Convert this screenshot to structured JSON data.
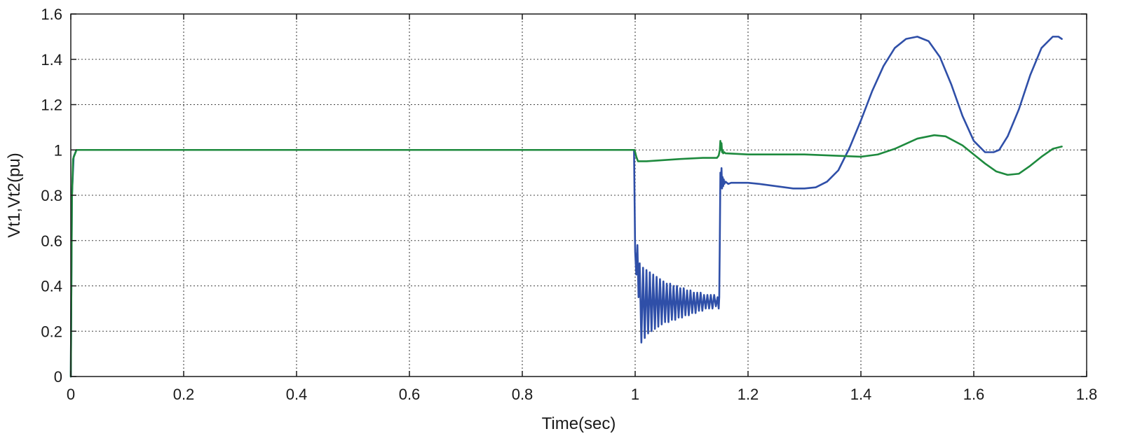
{
  "chart_data": {
    "type": "line",
    "title": "",
    "xlabel": "Time(sec)",
    "ylabel": "Vt1,Vt2(pu)",
    "xlim": [
      0,
      1.8
    ],
    "ylim": [
      0,
      1.6
    ],
    "xticks": [
      0,
      0.2,
      0.4,
      0.6,
      0.8,
      1,
      1.2,
      1.4,
      1.6,
      1.8
    ],
    "yticks": [
      0,
      0.2,
      0.4,
      0.6,
      0.8,
      1,
      1.2,
      1.4,
      1.6
    ],
    "xtick_labels": [
      "0",
      "0.2",
      "0.4",
      "0.6",
      "0.8",
      "1",
      "1.2",
      "1.4",
      "1.6",
      "1.8"
    ],
    "ytick_labels": [
      "0",
      "0.2",
      "0.4",
      "0.6",
      "0.8",
      "1",
      "1.2",
      "1.4",
      "1.6"
    ],
    "grid": true,
    "legend": "none",
    "series": [
      {
        "color": "#2f4fa8",
        "x": [
          0,
          0.002,
          0.005,
          0.01,
          0.2,
          0.4,
          0.6,
          0.8,
          0.998,
          1.0,
          1.002,
          1.004,
          1.006,
          1.008,
          1.011,
          1.014,
          1.017,
          1.02,
          1.023,
          1.026,
          1.029,
          1.032,
          1.035,
          1.038,
          1.041,
          1.044,
          1.047,
          1.05,
          1.053,
          1.056,
          1.059,
          1.062,
          1.065,
          1.068,
          1.071,
          1.074,
          1.077,
          1.08,
          1.083,
          1.086,
          1.089,
          1.092,
          1.095,
          1.098,
          1.101,
          1.104,
          1.107,
          1.11,
          1.113,
          1.116,
          1.119,
          1.122,
          1.125,
          1.128,
          1.131,
          1.134,
          1.137,
          1.14,
          1.143,
          1.146,
          1.148,
          1.149,
          1.15,
          1.151,
          1.152,
          1.153,
          1.154,
          1.155,
          1.156,
          1.157,
          1.158,
          1.16,
          1.165,
          1.17,
          1.2,
          1.22,
          1.25,
          1.28,
          1.3,
          1.32,
          1.34,
          1.36,
          1.38,
          1.4,
          1.42,
          1.44,
          1.46,
          1.48,
          1.5,
          1.51,
          1.52,
          1.54,
          1.56,
          1.58,
          1.6,
          1.62,
          1.635,
          1.645,
          1.66,
          1.68,
          1.7,
          1.72,
          1.74,
          1.75,
          1.756
        ],
        "y": [
          0,
          0.8,
          0.97,
          1.0,
          1.0,
          1.0,
          1.0,
          1.0,
          1.0,
          0.55,
          0.45,
          0.58,
          0.35,
          0.5,
          0.15,
          0.48,
          0.17,
          0.47,
          0.19,
          0.46,
          0.2,
          0.45,
          0.21,
          0.44,
          0.22,
          0.43,
          0.23,
          0.42,
          0.24,
          0.41,
          0.24,
          0.41,
          0.25,
          0.4,
          0.25,
          0.4,
          0.26,
          0.39,
          0.26,
          0.39,
          0.27,
          0.38,
          0.27,
          0.38,
          0.28,
          0.37,
          0.28,
          0.37,
          0.29,
          0.37,
          0.29,
          0.36,
          0.3,
          0.36,
          0.3,
          0.36,
          0.3,
          0.36,
          0.31,
          0.35,
          0.3,
          0.35,
          0.6,
          0.9,
          0.84,
          0.92,
          0.83,
          0.88,
          0.84,
          0.87,
          0.85,
          0.86,
          0.85,
          0.855,
          0.855,
          0.85,
          0.84,
          0.83,
          0.83,
          0.835,
          0.86,
          0.91,
          1.01,
          1.13,
          1.26,
          1.37,
          1.45,
          1.49,
          1.5,
          1.49,
          1.48,
          1.41,
          1.29,
          1.15,
          1.04,
          0.99,
          0.99,
          1.0,
          1.06,
          1.18,
          1.33,
          1.45,
          1.5,
          1.5,
          1.49
        ]
      },
      {
        "color": "#1e8a3e",
        "x": [
          0,
          0.002,
          0.004,
          0.01,
          0.2,
          0.4,
          0.6,
          0.8,
          0.999,
          1.002,
          1.005,
          1.02,
          1.05,
          1.08,
          1.12,
          1.145,
          1.148,
          1.15,
          1.151,
          1.152,
          1.153,
          1.154,
          1.155,
          1.156,
          1.158,
          1.16,
          1.2,
          1.25,
          1.3,
          1.35,
          1.4,
          1.43,
          1.46,
          1.5,
          1.53,
          1.55,
          1.58,
          1.6,
          1.62,
          1.64,
          1.66,
          1.68,
          1.7,
          1.72,
          1.74,
          1.756
        ],
        "y": [
          0,
          0.78,
          0.96,
          1.0,
          1.0,
          1.0,
          1.0,
          1.0,
          1.0,
          0.97,
          0.95,
          0.95,
          0.955,
          0.96,
          0.965,
          0.965,
          0.975,
          1.0,
          1.04,
          1.0,
          1.03,
          0.99,
          1.0,
          0.985,
          0.99,
          0.985,
          0.98,
          0.98,
          0.98,
          0.975,
          0.97,
          0.98,
          1.005,
          1.05,
          1.065,
          1.06,
          1.02,
          0.98,
          0.94,
          0.905,
          0.89,
          0.895,
          0.93,
          0.97,
          1.005,
          1.015
        ]
      }
    ]
  }
}
